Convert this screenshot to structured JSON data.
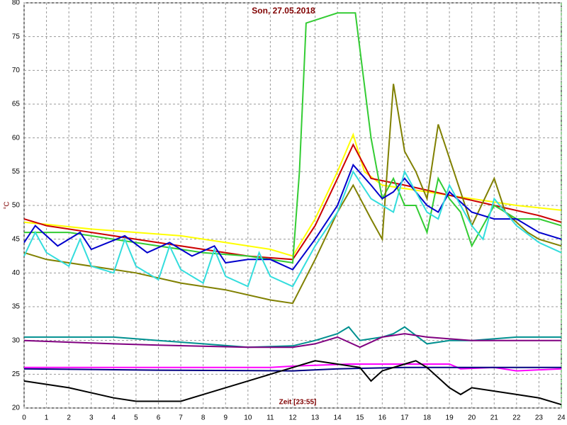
{
  "chart_data": {
    "type": "line",
    "title": "Son, 27.05.2018",
    "y_label": "°C",
    "annotation": "Zeit [23:55]",
    "xlim": [
      0,
      24
    ],
    "xticks": [
      0,
      1,
      2,
      3,
      4,
      5,
      6,
      7,
      8,
      9,
      10,
      11,
      12,
      13,
      14,
      15,
      16,
      17,
      18,
      19,
      20,
      21,
      22,
      23,
      24
    ],
    "ylim": [
      20,
      80
    ],
    "yticks": [
      20,
      25,
      30,
      35,
      40,
      45,
      50,
      55,
      60,
      65,
      70,
      75,
      80
    ],
    "grid": true,
    "series": [
      {
        "color": "#ffff00",
        "x": [
          0,
          1,
          3,
          5,
          7,
          9,
          11,
          12,
          13,
          14,
          14.7,
          15.2,
          16,
          18,
          20,
          22,
          24
        ],
        "values": [
          47.5,
          47.2,
          46.5,
          46,
          45.5,
          44.5,
          43.5,
          42.5,
          48,
          55,
          60.5,
          55,
          53,
          52,
          51,
          50,
          49.3
        ]
      },
      {
        "color": "#cc0000",
        "x": [
          0,
          0.5,
          1,
          3,
          5,
          8,
          10,
          12,
          13,
          14,
          14.7,
          15.5,
          17,
          19,
          21,
          23,
          24
        ],
        "values": [
          48,
          47.5,
          47,
          46,
          45,
          43.5,
          42.5,
          42,
          47,
          54,
          59,
          54,
          53,
          51.5,
          50,
          48.5,
          47.5
        ]
      },
      {
        "color": "#33cc33",
        "x": [
          0,
          2,
          4,
          6,
          8,
          10,
          11,
          12,
          12.3,
          12.6,
          14,
          14.8,
          15.5,
          16,
          16.5,
          17,
          17.5,
          18,
          18.5,
          19,
          19.5,
          20,
          21,
          22,
          23,
          24
        ],
        "values": [
          46,
          46,
          45,
          44,
          43,
          42.5,
          42,
          41.5,
          55,
          77,
          78.5,
          78.5,
          60,
          51,
          54,
          50,
          50,
          46,
          54,
          51,
          49,
          44,
          50,
          48,
          48,
          47
        ]
      },
      {
        "color": "#808000",
        "x": [
          0,
          1,
          3,
          5,
          7,
          9,
          11,
          12,
          13,
          14,
          14.7,
          15.5,
          16,
          16.5,
          17,
          17.5,
          18,
          18.5,
          19,
          20,
          21,
          21.5,
          22.5,
          23,
          24
        ],
        "values": [
          43,
          42,
          41,
          40,
          38.5,
          37.5,
          36,
          35.5,
          42,
          49,
          53,
          48,
          45,
          68,
          58,
          55,
          51,
          62,
          57,
          47,
          54,
          49,
          46,
          45,
          44
        ]
      },
      {
        "color": "#0000cc",
        "x": [
          0,
          0.5,
          1.5,
          2.5,
          3,
          4.5,
          5.5,
          6.5,
          7.5,
          8.5,
          9,
          10,
          11,
          12,
          13,
          14,
          14.7,
          15.5,
          16,
          16.5,
          17,
          18,
          18.5,
          19,
          20,
          21,
          22,
          23,
          24
        ],
        "values": [
          44.5,
          47,
          44,
          46,
          43.5,
          45.5,
          43,
          44.5,
          42.5,
          44,
          41.5,
          42,
          42,
          40.5,
          45,
          50,
          56,
          53,
          51,
          52,
          54,
          50,
          49,
          52,
          49,
          48,
          48,
          46,
          45
        ]
      },
      {
        "color": "#33dddd",
        "x": [
          0,
          0.5,
          1,
          2,
          2.5,
          3,
          4,
          4.5,
          5,
          6,
          6.5,
          7,
          8,
          8.5,
          9,
          10,
          10.5,
          11,
          12,
          13,
          14,
          14.7,
          15.5,
          16,
          16.5,
          17,
          18,
          18.5,
          19,
          20,
          20.5,
          21,
          22,
          23,
          24
        ],
        "values": [
          42.5,
          46,
          43,
          41,
          45,
          41,
          40,
          45,
          41,
          39,
          44,
          40.5,
          38.5,
          43.5,
          39.5,
          38,
          43,
          39.5,
          38,
          44,
          49,
          55,
          51,
          50,
          49,
          55,
          49,
          48,
          53,
          47,
          45,
          51,
          47,
          44.5,
          43
        ]
      },
      {
        "color": "#009090",
        "x": [
          0,
          4,
          6,
          8,
          10,
          12,
          13,
          14,
          14.5,
          15,
          16,
          16.5,
          17,
          18,
          19,
          20,
          22,
          24
        ],
        "values": [
          30.5,
          30.5,
          30,
          29.5,
          29,
          29.2,
          30,
          31,
          32,
          30,
          30.5,
          31,
          32,
          29.5,
          30,
          30,
          30.5,
          30.5
        ]
      },
      {
        "color": "#800080",
        "x": [
          0,
          4,
          6,
          10,
          12,
          13,
          14,
          15,
          16,
          17,
          18,
          20,
          22,
          24
        ],
        "values": [
          30,
          29.5,
          29.3,
          29,
          29,
          29.5,
          30.5,
          29,
          30.5,
          31,
          30.5,
          30,
          30,
          30
        ]
      },
      {
        "color": "#ff00ff",
        "x": [
          0,
          11,
          12,
          14.5,
          19,
          19.5,
          21,
          22,
          24
        ],
        "values": [
          26,
          26,
          26.2,
          26.5,
          26.5,
          25.8,
          26,
          25.5,
          25.8
        ]
      },
      {
        "color": "#000080",
        "x": [
          0,
          6,
          12,
          14,
          17,
          24
        ],
        "values": [
          25.8,
          25.6,
          25.5,
          25.8,
          26,
          26
        ]
      },
      {
        "color": "#000000",
        "x": [
          0,
          2,
          4,
          5,
          7,
          8,
          10,
          11.5,
          13,
          14,
          15,
          15.5,
          16,
          17,
          17.5,
          18,
          19,
          19.5,
          20,
          22,
          23,
          24
        ],
        "values": [
          24,
          23,
          21.5,
          21,
          21,
          22,
          24,
          25.5,
          27,
          26.5,
          26,
          24,
          25.5,
          26.5,
          27,
          26,
          23,
          22,
          23,
          22,
          21.5,
          20.5
        ]
      }
    ]
  }
}
